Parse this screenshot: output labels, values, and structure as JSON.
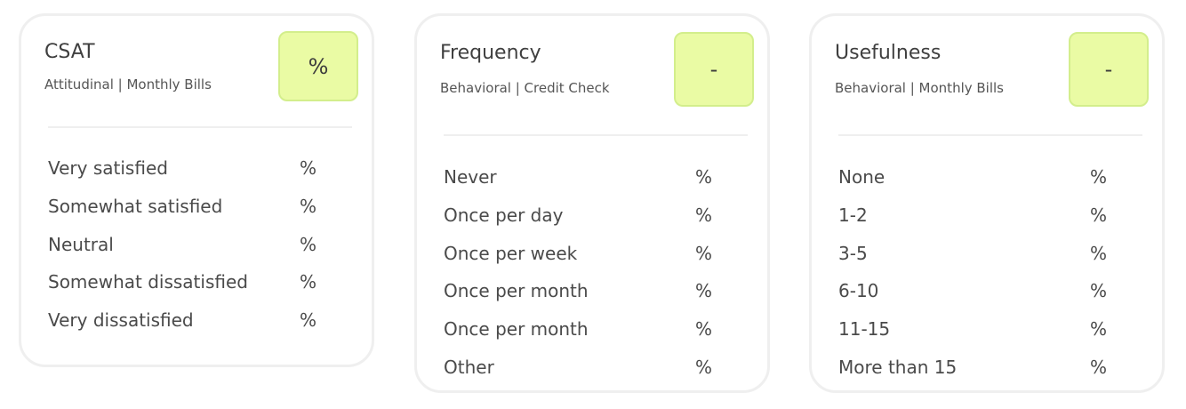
{
  "cards": [
    {
      "title": "CSAT",
      "subtitle": "Attitudinal | Monthly Bills",
      "badge": "%",
      "options": [
        {
          "label": "Very satisfied",
          "value": "%"
        },
        {
          "label": "Somewhat satisfied",
          "value": "%"
        },
        {
          "label": "Neutral",
          "value": "%"
        },
        {
          "label": "Somewhat dissatisfied",
          "value": "%"
        },
        {
          "label": "Very dissatisfied",
          "value": "%"
        }
      ]
    },
    {
      "title": "Frequency",
      "subtitle": "Behavioral | Credit Check",
      "badge": "-",
      "options": [
        {
          "label": "Never",
          "value": "%"
        },
        {
          "label": "Once per day",
          "value": "%"
        },
        {
          "label": "Once per week",
          "value": "%"
        },
        {
          "label": "Once per month",
          "value": "%"
        },
        {
          "label": "Once per month",
          "value": "%"
        },
        {
          "label": "Other",
          "value": "%"
        }
      ]
    },
    {
      "title": "Usefulness",
      "subtitle": "Behavioral | Monthly Bills",
      "badge": "-",
      "options": [
        {
          "label": "None",
          "value": "%"
        },
        {
          "label": "1-2",
          "value": "%"
        },
        {
          "label": "3-5",
          "value": "%"
        },
        {
          "label": "6-10",
          "value": "%"
        },
        {
          "label": "11-15",
          "value": "%"
        },
        {
          "label": "More than 15",
          "value": "%"
        }
      ]
    }
  ],
  "colors": {
    "badge_fill": "#eafba4",
    "badge_border": "#d3ee8c",
    "card_border": "#efefef",
    "text": "#4a4a4a"
  }
}
